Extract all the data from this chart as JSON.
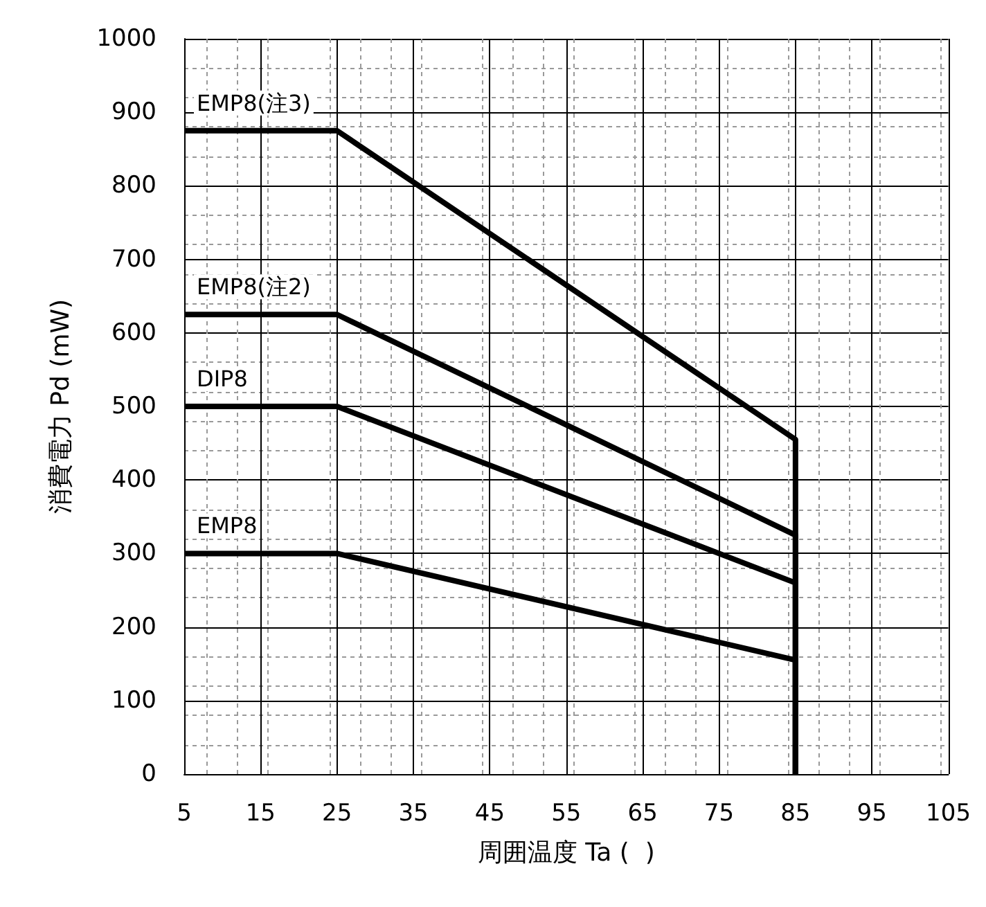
{
  "chart_data": {
    "type": "line",
    "xlabel": "周囲温度 Ta (  )",
    "ylabel": "消費電力 Pd (mW)",
    "xlim": [
      5,
      105
    ],
    "xticks": [
      5,
      15,
      25,
      35,
      45,
      55,
      65,
      75,
      85,
      95,
      105
    ],
    "ylim": [
      0,
      1000
    ],
    "yticks": [
      0,
      100,
      200,
      300,
      400,
      500,
      600,
      700,
      800,
      900,
      1000
    ],
    "grid": true,
    "legend": false,
    "line_style": "solid",
    "marker": "none",
    "series": [
      {
        "name": "EMP8(注3)",
        "color": "#000000",
        "x": [
          5,
          25,
          85,
          85
        ],
        "values": [
          875,
          875,
          455,
          0
        ]
      },
      {
        "name": "EMP8(注2)",
        "color": "#000000",
        "x": [
          5,
          25,
          85,
          85
        ],
        "values": [
          625,
          625,
          325,
          0
        ]
      },
      {
        "name": "DIP8",
        "color": "#000000",
        "x": [
          5,
          25,
          85,
          85
        ],
        "values": [
          500,
          500,
          260,
          0
        ]
      },
      {
        "name": "EMP8",
        "color": "#000000",
        "x": [
          5,
          25,
          85,
          85
        ],
        "values": [
          300,
          300,
          155,
          0
        ]
      }
    ]
  }
}
